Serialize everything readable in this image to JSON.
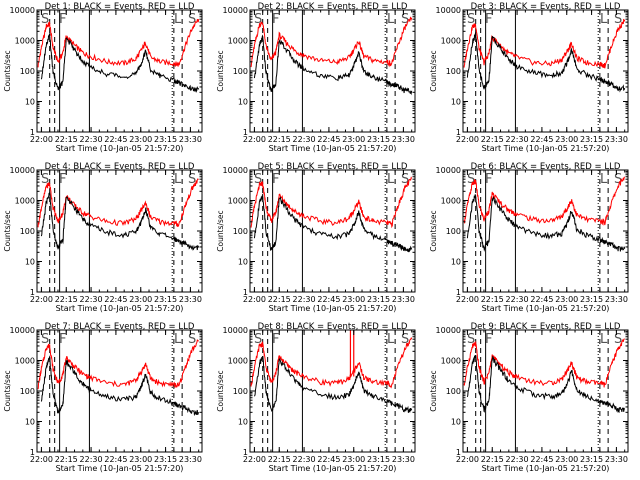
{
  "panel_titles": [
    "Det 1: BLACK = Events, RED = LLD",
    "Det 2: BLACK = Events, RED = LLD",
    "Det 3: BLACK = Events, RED = LLD",
    "Det 4: BLACK = Events, RED = LLD",
    "Det 5: BLACK = Events, RED = LLD",
    "Det 6: BLACK = Events, RED = LLD",
    "Det 7: BLACK = Events, RED = LLD",
    "Det 8: BLACK = Events, RED = LLD",
    "Det 9: BLACK = Events, RED = LLD"
  ],
  "xlabel": "Start Time (10-Jan-05 21:57:20)",
  "ylabel": "Counts/sec",
  "colors": {
    "events": "#000000",
    "lld": "#ff0000",
    "axes": "#000000"
  },
  "chart_data": {
    "type": "line",
    "layout": "3x3 grid",
    "yscale": "log",
    "xlim": [
      "21:57:20",
      "23:37:00"
    ],
    "ylim": [
      1,
      10000
    ],
    "xticks": [
      "22:00",
      "22:15",
      "22:30",
      "22:45",
      "23:00",
      "23:15",
      "23:30"
    ],
    "yticks": [
      "1",
      "10",
      "100",
      "1000",
      "10000"
    ],
    "region_labels": [
      "S",
      "F",
      "L",
      "S"
    ],
    "grid": false,
    "series": [
      {
        "name": "Events",
        "color": "#000000",
        "x": [
          "22:00",
          "22:03",
          "22:05",
          "22:07",
          "22:10",
          "22:13",
          "22:15",
          "22:20",
          "22:25",
          "22:30",
          "22:40",
          "22:50",
          "22:57",
          "23:00",
          "23:03",
          "23:06",
          "23:12",
          "23:20",
          "23:23",
          "23:27",
          "23:31",
          "23:35"
        ],
        "values": [
          60,
          800,
          1500,
          100,
          25,
          45,
          1200,
          500,
          220,
          130,
          80,
          65,
          80,
          160,
          450,
          110,
          70,
          50,
          40,
          35,
          25,
          25
        ]
      },
      {
        "name": "LLD",
        "color": "#ff0000",
        "x": [
          "21:58",
          "22:00",
          "22:03",
          "22:05",
          "22:07",
          "22:10",
          "22:13",
          "22:15",
          "22:20",
          "22:25",
          "22:30",
          "22:40",
          "22:50",
          "22:57",
          "23:00",
          "23:03",
          "23:06",
          "23:12",
          "23:20",
          "23:23",
          "23:27",
          "23:31",
          "23:35"
        ],
        "values": [
          150,
          600,
          3000,
          3500,
          600,
          200,
          400,
          1400,
          700,
          400,
          300,
          200,
          180,
          250,
          450,
          850,
          280,
          200,
          180,
          160,
          700,
          2500,
          5000
        ]
      }
    ]
  }
}
